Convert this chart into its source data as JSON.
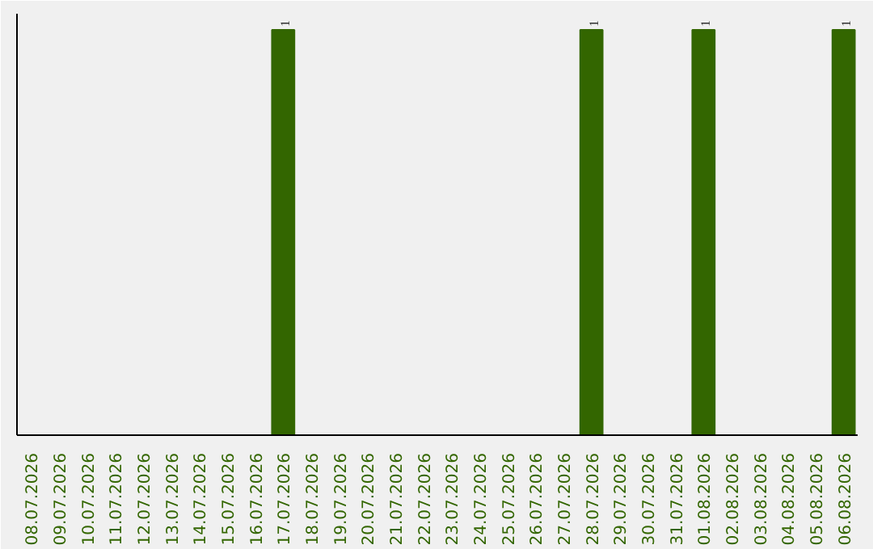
{
  "chart_data": {
    "type": "bar",
    "categories": [
      "08.07.2026",
      "09.07.2026",
      "10.07.2026",
      "11.07.2026",
      "12.07.2026",
      "13.07.2026",
      "14.07.2026",
      "15.07.2026",
      "16.07.2026",
      "17.07.2026",
      "18.07.2026",
      "19.07.2026",
      "20.07.2026",
      "21.07.2026",
      "22.07.2026",
      "23.07.2026",
      "24.07.2026",
      "25.07.2026",
      "26.07.2026",
      "27.07.2026",
      "28.07.2026",
      "29.07.2026",
      "30.07.2026",
      "31.07.2026",
      "01.08.2026",
      "02.08.2026",
      "03.08.2026",
      "04.08.2026",
      "05.08.2026",
      "06.08.2026"
    ],
    "values": [
      null,
      null,
      null,
      null,
      null,
      null,
      null,
      null,
      null,
      1,
      null,
      null,
      null,
      null,
      null,
      null,
      null,
      null,
      null,
      null,
      1,
      null,
      null,
      null,
      1,
      null,
      null,
      null,
      null,
      1
    ],
    "color": "#336600",
    "ylim": [
      0,
      1.04
    ],
    "data_labels": true,
    "tick_labels": "x"
  }
}
